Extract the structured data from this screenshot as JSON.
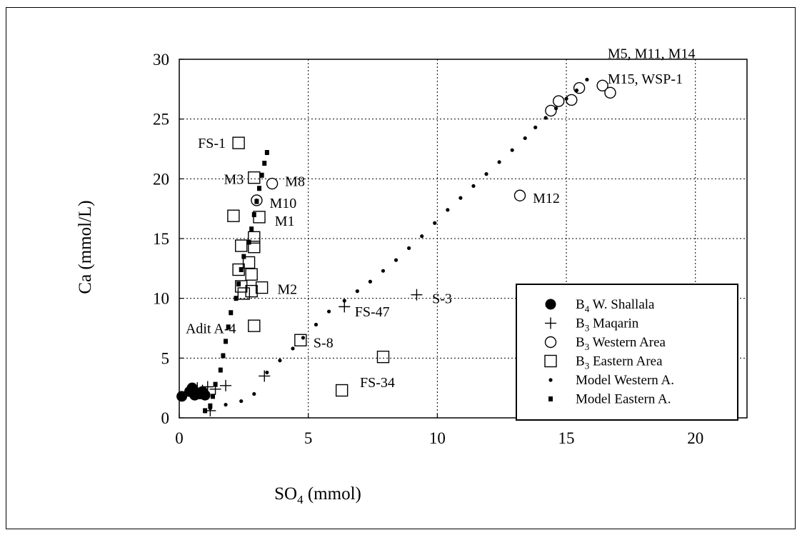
{
  "chart_data": {
    "type": "scatter",
    "xlabel": "SO4 (mmol)",
    "ylabel": "Ca (mmol/L)",
    "xlim": [
      0,
      22
    ],
    "ylim": [
      0,
      30
    ],
    "x_ticks": [
      0,
      5,
      10,
      15,
      20
    ],
    "y_ticks": [
      0,
      5,
      10,
      15,
      20,
      25,
      30
    ],
    "grid": true,
    "legend_position": "bottom-right",
    "series": [
      {
        "name": "B4 W. Shallala",
        "marker": "filled-circle",
        "points": [
          [
            0.1,
            1.8
          ],
          [
            0.4,
            2.2
          ],
          [
            0.5,
            2.5
          ],
          [
            0.6,
            1.9
          ],
          [
            0.7,
            2.1
          ],
          [
            0.8,
            2.0
          ],
          [
            0.9,
            2.2
          ],
          [
            1.0,
            1.9
          ]
        ]
      },
      {
        "name": "B3 Maqarin",
        "marker": "plus",
        "points": [
          [
            0.5,
            2.1
          ],
          [
            0.7,
            2.5
          ],
          [
            0.9,
            2.3
          ],
          [
            1.1,
            2.6
          ],
          [
            1.2,
            0.6
          ],
          [
            1.4,
            2.4
          ],
          [
            1.8,
            2.7
          ],
          [
            3.3,
            3.5
          ],
          [
            6.4,
            9.3
          ],
          [
            9.2,
            10.3
          ]
        ]
      },
      {
        "name": "B3 Western Area",
        "marker": "open-circle",
        "points": [
          [
            3.6,
            19.6
          ],
          [
            3.0,
            18.2
          ],
          [
            13.2,
            18.6
          ],
          [
            14.4,
            25.7
          ],
          [
            14.7,
            26.5
          ],
          [
            15.2,
            26.6
          ],
          [
            15.5,
            27.6
          ],
          [
            16.4,
            27.8
          ],
          [
            16.7,
            27.2
          ]
        ]
      },
      {
        "name": "B3 Eastern Area",
        "marker": "open-square",
        "points": [
          [
            2.3,
            23.0
          ],
          [
            2.9,
            20.1
          ],
          [
            2.1,
            16.9
          ],
          [
            3.1,
            16.8
          ],
          [
            2.9,
            15.1
          ],
          [
            2.4,
            14.4
          ],
          [
            2.9,
            14.3
          ],
          [
            2.7,
            13.0
          ],
          [
            2.8,
            12.0
          ],
          [
            2.3,
            12.4
          ],
          [
            2.4,
            11.0
          ],
          [
            3.2,
            10.9
          ],
          [
            2.8,
            10.6
          ],
          [
            2.5,
            10.4
          ],
          [
            2.9,
            7.7
          ],
          [
            4.7,
            6.5
          ],
          [
            7.9,
            5.1
          ],
          [
            6.3,
            2.3
          ]
        ]
      },
      {
        "name": "Model Western A.",
        "marker": "small-dot",
        "points": [
          [
            1.2,
            0.8
          ],
          [
            1.8,
            1.1
          ],
          [
            2.4,
            1.4
          ],
          [
            2.9,
            2.0
          ],
          [
            3.4,
            3.8
          ],
          [
            3.9,
            4.8
          ],
          [
            4.4,
            5.8
          ],
          [
            4.8,
            6.7
          ],
          [
            5.3,
            7.8
          ],
          [
            5.8,
            8.9
          ],
          [
            6.4,
            9.8
          ],
          [
            6.9,
            10.6
          ],
          [
            7.4,
            11.4
          ],
          [
            7.9,
            12.3
          ],
          [
            8.4,
            13.2
          ],
          [
            8.9,
            14.2
          ],
          [
            9.4,
            15.2
          ],
          [
            9.9,
            16.3
          ],
          [
            10.4,
            17.4
          ],
          [
            10.9,
            18.4
          ],
          [
            11.4,
            19.4
          ],
          [
            11.9,
            20.4
          ],
          [
            12.4,
            21.4
          ],
          [
            12.9,
            22.4
          ],
          [
            13.4,
            23.4
          ],
          [
            13.8,
            24.3
          ],
          [
            14.2,
            25.1
          ],
          [
            14.6,
            25.9
          ],
          [
            15.0,
            26.7
          ],
          [
            15.4,
            27.4
          ],
          [
            15.8,
            28.3
          ]
        ]
      },
      {
        "name": "Model Eastern A.",
        "marker": "small-square",
        "points": [
          [
            1.0,
            0.6
          ],
          [
            1.2,
            1.0
          ],
          [
            1.3,
            1.8
          ],
          [
            1.4,
            2.8
          ],
          [
            1.6,
            4.0
          ],
          [
            1.7,
            5.2
          ],
          [
            1.8,
            6.4
          ],
          [
            1.9,
            7.6
          ],
          [
            2.0,
            8.8
          ],
          [
            2.2,
            10.0
          ],
          [
            2.3,
            11.2
          ],
          [
            2.4,
            12.4
          ],
          [
            2.5,
            13.5
          ],
          [
            2.7,
            14.7
          ],
          [
            2.8,
            15.8
          ],
          [
            2.9,
            17.0
          ],
          [
            3.0,
            18.1
          ],
          [
            3.1,
            19.2
          ],
          [
            3.2,
            20.3
          ],
          [
            3.3,
            21.3
          ],
          [
            3.4,
            22.2
          ]
        ]
      }
    ],
    "annotations": [
      {
        "text": "FS-1",
        "x": 1.8,
        "y": 23.0,
        "anchor": "end"
      },
      {
        "text": "M3",
        "x": 2.5,
        "y": 20.0,
        "anchor": "end"
      },
      {
        "text": "M8",
        "x": 4.1,
        "y": 19.8,
        "anchor": "start"
      },
      {
        "text": "M10",
        "x": 3.5,
        "y": 18.0,
        "anchor": "start"
      },
      {
        "text": "M1",
        "x": 3.7,
        "y": 16.5,
        "anchor": "start"
      },
      {
        "text": "M2",
        "x": 3.8,
        "y": 10.8,
        "anchor": "start"
      },
      {
        "text": "Adit A-4",
        "x": 2.2,
        "y": 7.5,
        "anchor": "end"
      },
      {
        "text": "S-8",
        "x": 5.2,
        "y": 6.3,
        "anchor": "start"
      },
      {
        "text": "FS-47",
        "x": 6.8,
        "y": 8.9,
        "anchor": "start"
      },
      {
        "text": "S-3",
        "x": 9.8,
        "y": 10.0,
        "anchor": "start"
      },
      {
        "text": "FS-34",
        "x": 7.0,
        "y": 3.0,
        "anchor": "start"
      },
      {
        "text": "M12",
        "x": 13.7,
        "y": 18.4,
        "anchor": "start"
      },
      {
        "text": "M5, M11, M14",
        "x": 16.6,
        "y": 30.5,
        "anchor": "start"
      },
      {
        "text": "M15, WSP-1",
        "x": 16.6,
        "y": 28.4,
        "anchor": "start"
      }
    ],
    "colors": {
      "ink": "#000000",
      "grid": "#000000",
      "background": "#ffffff"
    }
  }
}
